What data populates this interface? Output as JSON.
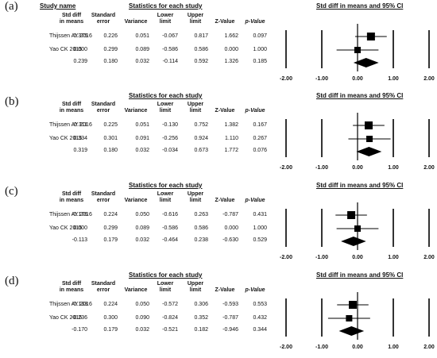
{
  "labels": {
    "study_name": "Study name",
    "stats_title": "Statistics for each study",
    "ci_title": "Std diff in means and 95% CI"
  },
  "columns": [
    {
      "line1": "Std diff",
      "line2": "in means"
    },
    {
      "line1": "Standard",
      "line2": "error"
    },
    {
      "line1": "",
      "line2": "Variance"
    },
    {
      "line1": "Lower",
      "line2": "limit"
    },
    {
      "line1": "Upper",
      "line2": "limit"
    },
    {
      "line1": "",
      "line2": "Z-Value"
    },
    {
      "line1": "",
      "line2": "p-Value"
    }
  ],
  "chart_data": [
    {
      "type": "forest",
      "panel": "(a)",
      "xlim": [
        -2,
        2
      ],
      "ticks": [
        "-2.00",
        "-1.00",
        "0.00",
        "1.00",
        "2.00"
      ],
      "rows": [
        {
          "study": "Thijssen AY 2016",
          "values": [
            "0.375",
            "0.226",
            "0.051",
            "-0.067",
            "0.817",
            "1.662",
            "0.097"
          ],
          "est": 0.375,
          "lo": -0.067,
          "hi": 0.817
        },
        {
          "study": "Yao CK 2015",
          "values": [
            "0.000",
            "0.299",
            "0.089",
            "-0.586",
            "0.586",
            "0.000",
            "1.000"
          ],
          "est": 0.0,
          "lo": -0.586,
          "hi": 0.586
        }
      ],
      "summary": {
        "values": [
          "0.239",
          "0.180",
          "0.032",
          "-0.114",
          "0.592",
          "1.326",
          "0.185"
        ],
        "est": 0.239,
        "lo": -0.114,
        "hi": 0.592
      }
    },
    {
      "type": "forest",
      "panel": "(b)",
      "xlim": [
        -2,
        2
      ],
      "ticks": [
        "-2.00",
        "-1.00",
        "0.00",
        "1.00",
        "2.00"
      ],
      "rows": [
        {
          "study": "Thijssen AY 2016",
          "values": [
            "0.311",
            "0.225",
            "0.051",
            "-0.130",
            "0.752",
            "1.382",
            "0.167"
          ],
          "est": 0.311,
          "lo": -0.13,
          "hi": 0.752
        },
        {
          "study": "Yao CK 2015",
          "values": [
            "0.334",
            "0.301",
            "0.091",
            "-0.256",
            "0.924",
            "1.110",
            "0.267"
          ],
          "est": 0.334,
          "lo": -0.256,
          "hi": 0.924
        }
      ],
      "summary": {
        "values": [
          "0.319",
          "0.180",
          "0.032",
          "-0.034",
          "0.673",
          "1.772",
          "0.076"
        ],
        "est": 0.319,
        "lo": -0.034,
        "hi": 0.673
      }
    },
    {
      "type": "forest",
      "panel": "(c)",
      "xlim": [
        -2,
        2
      ],
      "ticks": [
        "-2.00",
        "-1.00",
        "0.00",
        "1.00",
        "2.00"
      ],
      "rows": [
        {
          "study": "Thijssen AY 2016",
          "values": [
            "-0.176",
            "0.224",
            "0.050",
            "-0.616",
            "0.263",
            "-0.787",
            "0.431"
          ],
          "est": -0.176,
          "lo": -0.616,
          "hi": 0.263
        },
        {
          "study": "Yao CK 2015",
          "values": [
            "0.000",
            "0.299",
            "0.089",
            "-0.586",
            "0.586",
            "0.000",
            "1.000"
          ],
          "est": 0.0,
          "lo": -0.586,
          "hi": 0.586
        }
      ],
      "summary": {
        "values": [
          "-0.113",
          "0.179",
          "0.032",
          "-0.464",
          "0.238",
          "-0.630",
          "0.529"
        ],
        "est": -0.113,
        "lo": -0.464,
        "hi": 0.238
      }
    },
    {
      "type": "forest",
      "panel": "(d)",
      "xlim": [
        -2,
        2
      ],
      "ticks": [
        "-2.00",
        "-1.00",
        "0.00",
        "1.00",
        "2.00"
      ],
      "rows": [
        {
          "study": "Thijssen AY 2016",
          "values": [
            "-0.133",
            "0.224",
            "0.050",
            "-0.572",
            "0.306",
            "-0.593",
            "0.553"
          ],
          "est": -0.133,
          "lo": -0.572,
          "hi": 0.306
        },
        {
          "study": "Yao CK 2015",
          "values": [
            "-0.236",
            "0.300",
            "0.090",
            "-0.824",
            "0.352",
            "-0.787",
            "0.432"
          ],
          "est": -0.236,
          "lo": -0.824,
          "hi": 0.352
        }
      ],
      "summary": {
        "values": [
          "-0.170",
          "0.179",
          "0.032",
          "-0.521",
          "0.182",
          "-0.946",
          "0.344"
        ],
        "est": -0.17,
        "lo": -0.521,
        "hi": 0.182
      }
    }
  ]
}
